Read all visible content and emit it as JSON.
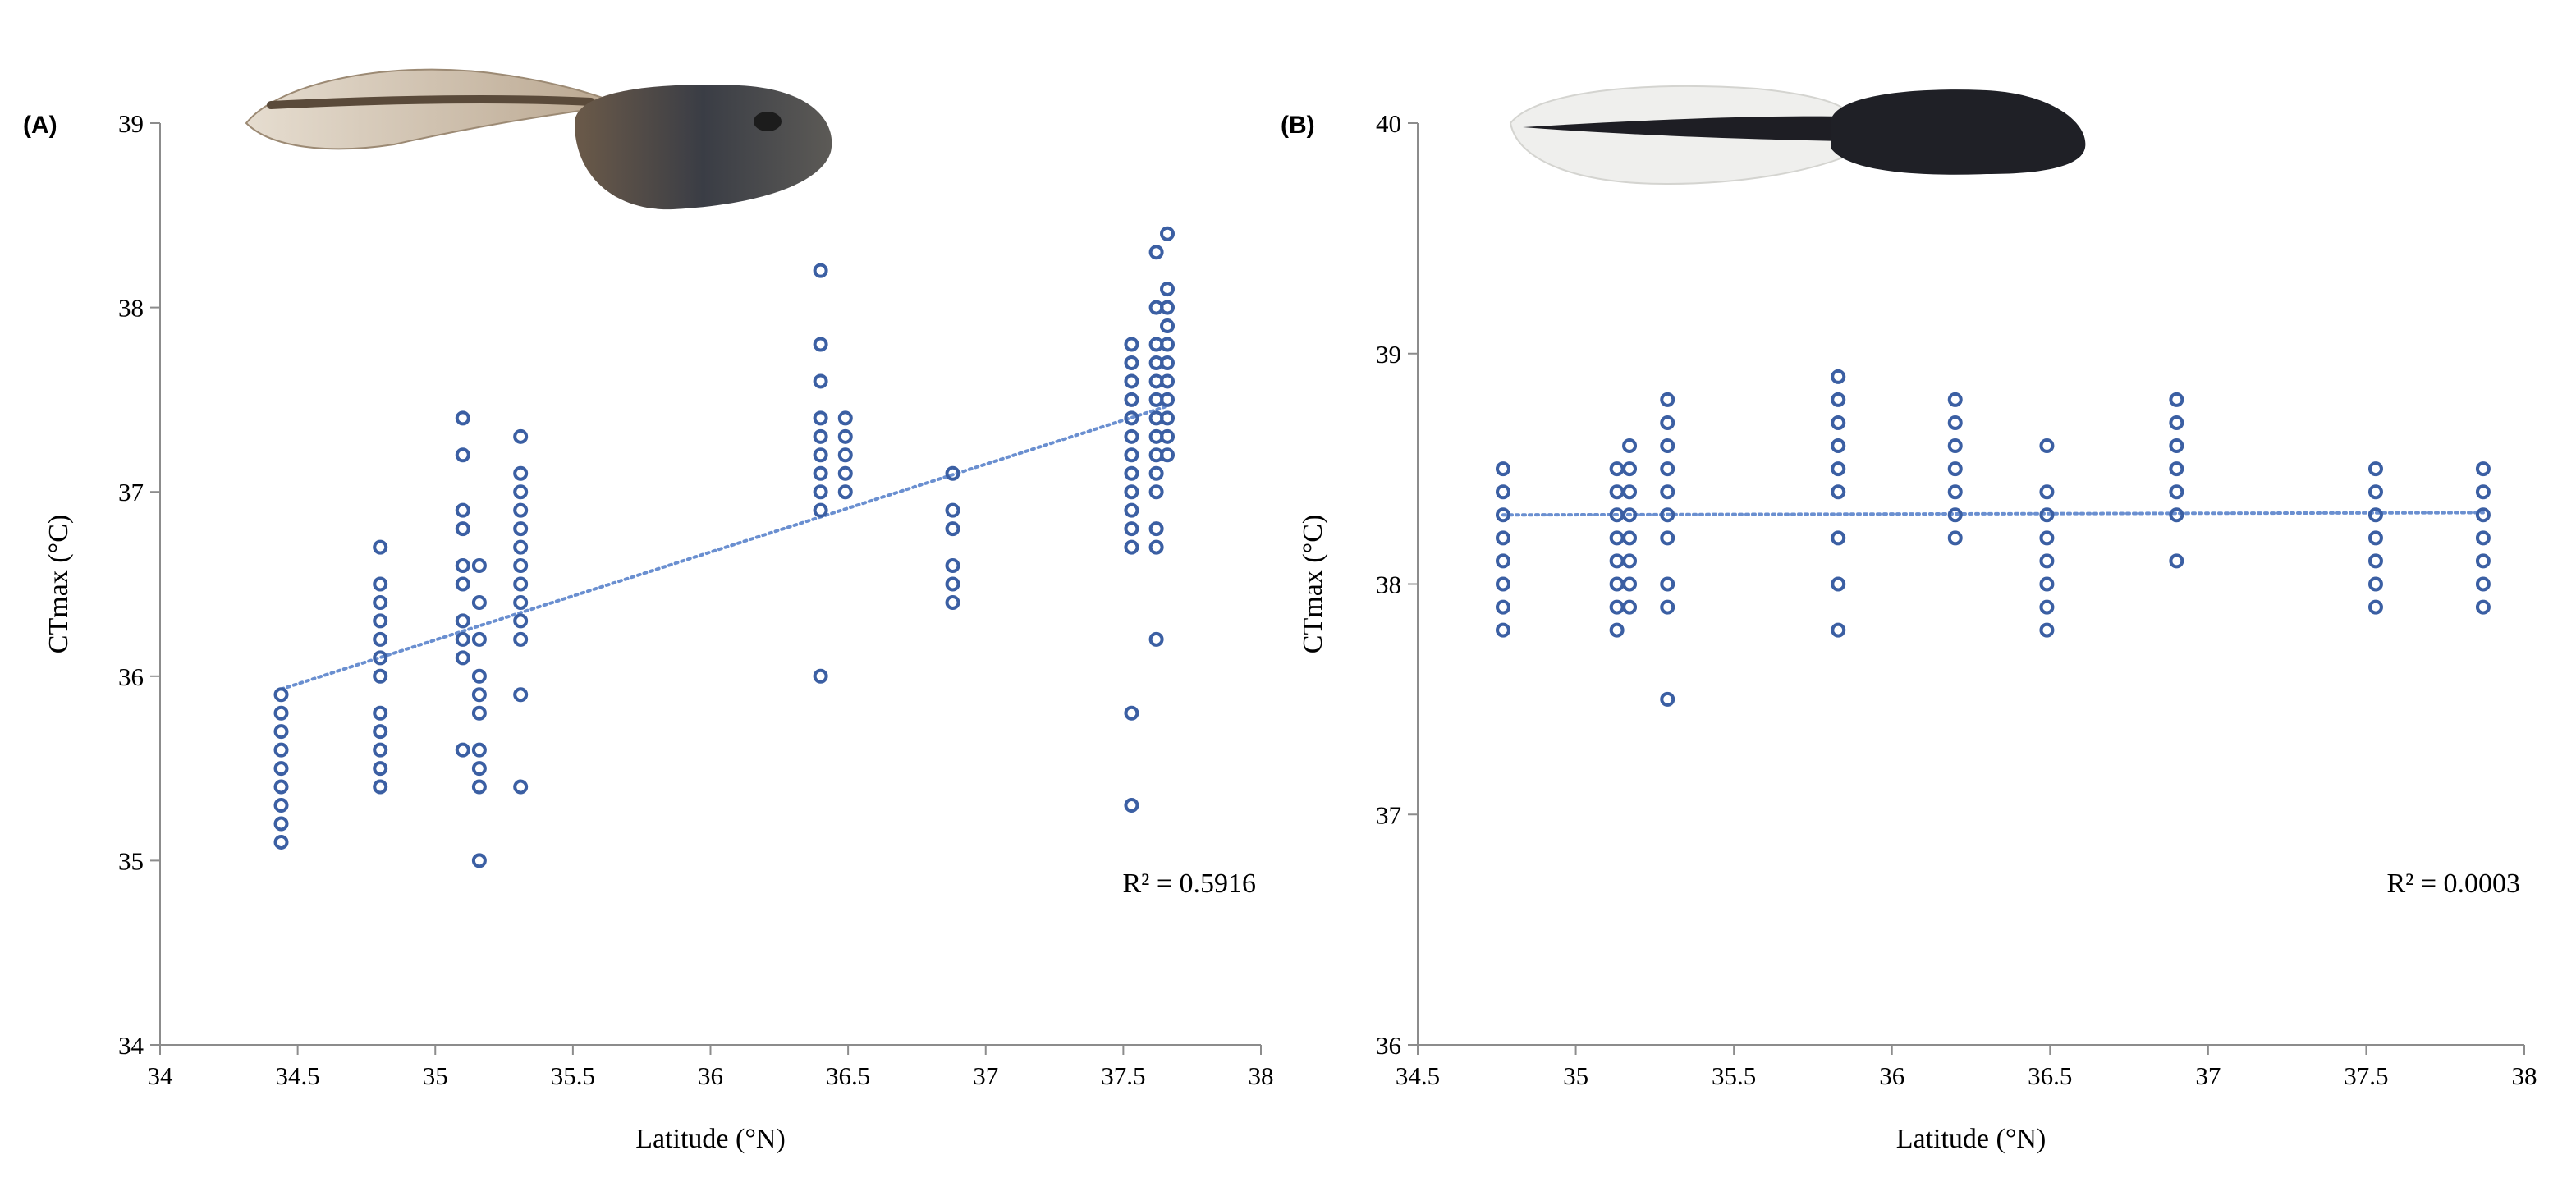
{
  "colors": {
    "marker": "#3b5fa3",
    "trend": "#6a8fd0",
    "axis": "#8c8c8c"
  },
  "chart_data": [
    {
      "id": "A",
      "type": "scatter",
      "panel_label": "(A)",
      "xlabel": "Latitude (°N)",
      "ylabel": "CTmax (°C)",
      "xlim": [
        34,
        38
      ],
      "ylim": [
        34,
        39
      ],
      "xticks": [
        "34",
        "34.5",
        "35",
        "35.5",
        "36",
        "36.5",
        "37",
        "37.5",
        "38"
      ],
      "yticks": [
        "34",
        "35",
        "36",
        "37",
        "38",
        "39"
      ],
      "trendline": {
        "x": [
          34.44,
          37.65
        ],
        "y": [
          35.93,
          37.46
        ]
      },
      "r2_label": "R² = 0.5916",
      "illustration": "tadpole-brown",
      "points": [
        {
          "x": 34.44,
          "y": [
            35.1,
            35.2,
            35.3,
            35.4,
            35.5,
            35.6,
            35.7,
            35.8,
            35.9
          ]
        },
        {
          "x": 34.8,
          "y": [
            35.4,
            35.5,
            35.6,
            35.7,
            35.8,
            36.0,
            36.1,
            36.2,
            36.3,
            36.4,
            36.5,
            36.7
          ]
        },
        {
          "x": 35.1,
          "y": [
            35.6,
            36.1,
            36.2,
            36.3,
            36.5,
            36.6,
            36.8,
            36.9,
            37.2,
            37.4
          ]
        },
        {
          "x": 35.16,
          "y": [
            35.0,
            35.4,
            35.5,
            35.6,
            35.8,
            35.9,
            36.0,
            36.2,
            36.4,
            36.6
          ]
        },
        {
          "x": 35.31,
          "y": [
            35.4,
            35.9,
            36.2,
            36.3,
            36.4,
            36.5,
            36.6,
            36.7,
            36.8,
            36.9,
            37.0,
            37.1,
            37.3
          ]
        },
        {
          "x": 36.4,
          "y": [
            36.0,
            36.9,
            37.0,
            37.1,
            37.2,
            37.3,
            37.4,
            37.6,
            37.8,
            38.2
          ]
        },
        {
          "x": 36.49,
          "y": [
            37.0,
            37.1,
            37.2,
            37.3,
            37.4
          ]
        },
        {
          "x": 36.88,
          "y": [
            36.4,
            36.5,
            36.6,
            36.8,
            36.9,
            37.1
          ]
        },
        {
          "x": 37.53,
          "y": [
            35.3,
            35.8,
            36.7,
            36.8,
            36.9,
            37.0,
            37.1,
            37.2,
            37.3,
            37.4,
            37.5,
            37.6,
            37.7,
            37.8
          ]
        },
        {
          "x": 37.62,
          "y": [
            36.2,
            36.7,
            36.8,
            37.0,
            37.1,
            37.2,
            37.3,
            37.4,
            37.5,
            37.6,
            37.7,
            37.8,
            38.0,
            38.3
          ]
        },
        {
          "x": 37.66,
          "y": [
            37.2,
            37.3,
            37.4,
            37.5,
            37.6,
            37.7,
            37.8,
            37.9,
            38.0,
            38.1,
            38.4
          ]
        }
      ]
    },
    {
      "id": "B",
      "type": "scatter",
      "panel_label": "(B)",
      "xlabel": "Latitude (°N)",
      "ylabel": "CTmax (°C)",
      "xlim": [
        34.5,
        38
      ],
      "ylim": [
        36,
        40
      ],
      "xticks": [
        "34.5",
        "35",
        "35.5",
        "36",
        "36.5",
        "37",
        "37.5",
        "38"
      ],
      "yticks": [
        "36",
        "37",
        "38",
        "39",
        "40"
      ],
      "trendline": {
        "x": [
          34.77,
          37.87
        ],
        "y": [
          38.3,
          38.31
        ]
      },
      "r2_label": "R² = 0.0003",
      "illustration": "tadpole-black",
      "points": [
        {
          "x": 34.77,
          "y": [
            37.8,
            37.9,
            38.0,
            38.1,
            38.2,
            38.3,
            38.4,
            38.5
          ]
        },
        {
          "x": 35.13,
          "y": [
            37.8,
            37.9,
            38.0,
            38.1,
            38.2,
            38.3,
            38.4,
            38.5
          ]
        },
        {
          "x": 35.17,
          "y": [
            37.9,
            38.0,
            38.1,
            38.2,
            38.3,
            38.4,
            38.5,
            38.6
          ]
        },
        {
          "x": 35.29,
          "y": [
            37.5,
            37.9,
            38.0,
            38.2,
            38.3,
            38.4,
            38.5,
            38.6,
            38.7,
            38.8
          ]
        },
        {
          "x": 35.83,
          "y": [
            37.8,
            38.0,
            38.2,
            38.4,
            38.5,
            38.6,
            38.7,
            38.8,
            38.9
          ]
        },
        {
          "x": 36.2,
          "y": [
            38.2,
            38.3,
            38.4,
            38.5,
            38.6,
            38.7,
            38.8
          ]
        },
        {
          "x": 36.49,
          "y": [
            37.8,
            37.9,
            38.0,
            38.1,
            38.2,
            38.3,
            38.4,
            38.6
          ]
        },
        {
          "x": 36.9,
          "y": [
            38.1,
            38.3,
            38.4,
            38.5,
            38.6,
            38.7,
            38.8
          ]
        },
        {
          "x": 37.53,
          "y": [
            37.9,
            38.0,
            38.1,
            38.2,
            38.3,
            38.4,
            38.5
          ]
        },
        {
          "x": 37.87,
          "y": [
            37.9,
            38.0,
            38.1,
            38.2,
            38.3,
            38.4,
            38.5
          ]
        }
      ]
    }
  ]
}
